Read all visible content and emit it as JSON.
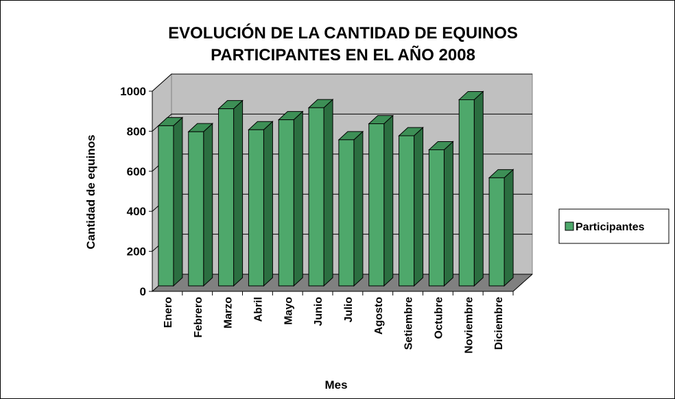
{
  "chart_data": {
    "type": "bar3d",
    "title": [
      "EVOLUCIÓN DE LA CANTIDAD DE EQUINOS",
      "PARTICIPANTES EN EL AÑO 2008"
    ],
    "x_label": "Mes",
    "y_label": "Cantidad de equinos",
    "categories": [
      "Enero",
      "Febrero",
      "Marzo",
      "Abril",
      "Mayo",
      "Junio",
      "Julio",
      "Agosto",
      "Setiembre",
      "Octubre",
      "Noviembre",
      "Diciembre"
    ],
    "series": [
      {
        "name": "Participantes",
        "color": "#4ea86b",
        "values": [
          800,
          770,
          885,
          780,
          830,
          890,
          730,
          810,
          750,
          680,
          930,
          540
        ]
      }
    ],
    "ylim": [
      0,
      1000
    ],
    "yticks": [
      0,
      200,
      400,
      600,
      800,
      1000
    ],
    "grid": true,
    "legend": "right"
  }
}
